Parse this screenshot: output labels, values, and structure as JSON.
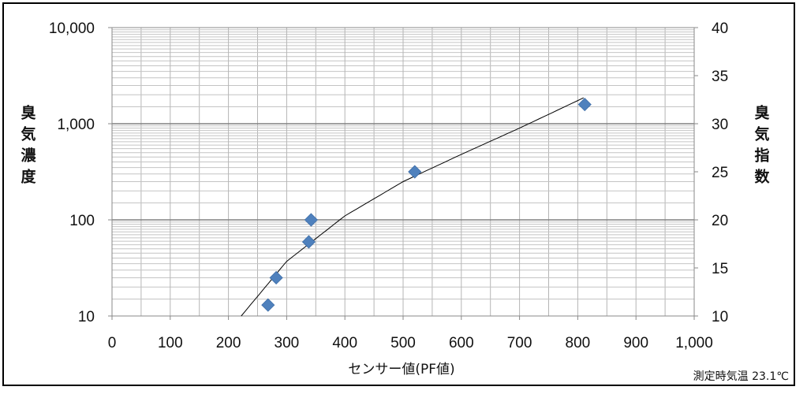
{
  "chart_data": {
    "type": "scatter",
    "title": "",
    "xlabel": "センサー値(PF値)",
    "ylabel_left": "臭気濃度",
    "ylabel_right": "臭気指数",
    "note": "測定時気温 23.1℃",
    "xlim": [
      0,
      1000
    ],
    "ylim_left": [
      10,
      10000
    ],
    "y_left_scale": "log",
    "ylim_right": [
      10,
      40
    ],
    "x_ticks": [
      "0",
      "100",
      "200",
      "300",
      "400",
      "500",
      "600",
      "700",
      "800",
      "900",
      "1,000"
    ],
    "y_left_ticks": [
      "10",
      "100",
      "1,000",
      "10,000"
    ],
    "y_right_ticks": [
      "10",
      "15",
      "20",
      "25",
      "30",
      "35",
      "40"
    ],
    "grid": true,
    "legend": "none",
    "marker_color": "#4f81bd",
    "points": [
      {
        "x": 268,
        "y": 13
      },
      {
        "x": 282,
        "y": 25
      },
      {
        "x": 338,
        "y": 59
      },
      {
        "x": 342,
        "y": 100
      },
      {
        "x": 520,
        "y": 316
      },
      {
        "x": 812,
        "y": 1585
      }
    ],
    "trendline": {
      "type": "power",
      "x_range": [
        222,
        810
      ],
      "points": [
        {
          "x": 222,
          "y": 10
        },
        {
          "x": 300,
          "y": 37
        },
        {
          "x": 400,
          "y": 110
        },
        {
          "x": 500,
          "y": 250
        },
        {
          "x": 600,
          "y": 480
        },
        {
          "x": 700,
          "y": 900
        },
        {
          "x": 810,
          "y": 1860
        }
      ]
    }
  }
}
